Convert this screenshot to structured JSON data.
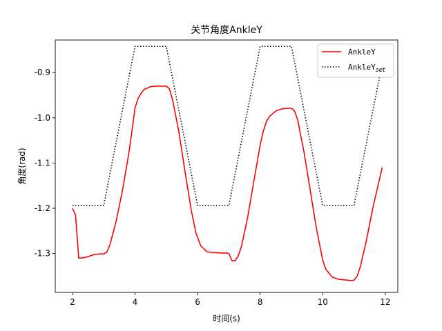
{
  "chart_data": {
    "type": "line",
    "title": "关节角度AnkleY",
    "xlabel": "时间(s)",
    "ylabel": "角度(rad)",
    "xlim": [
      1.45,
      12.4
    ],
    "ylim": [
      -1.386,
      -0.828
    ],
    "xticks": [
      2,
      4,
      6,
      8,
      10,
      12
    ],
    "yticks": [
      -0.9,
      -1.0,
      -1.1,
      -1.2,
      -1.3
    ],
    "xtick_labels": [
      "2",
      "4",
      "6",
      "8",
      "10",
      "12"
    ],
    "ytick_labels": [
      "-0.9",
      "-1.0",
      "-1.1",
      "-1.2",
      "-1.3"
    ],
    "grid": false,
    "legend_position": "upper right",
    "legend_labels": [
      "AnkleY",
      "AnkleY"
    ],
    "legend_subscripts": [
      "",
      "set"
    ],
    "series": [
      {
        "name": "AnkleY",
        "color": "#ff0000",
        "style": "solid",
        "x": [
          2.0,
          2.1,
          2.2,
          2.3,
          2.5,
          2.7,
          2.9,
          3.0,
          3.1,
          3.2,
          3.4,
          3.6,
          3.8,
          3.9,
          4.0,
          4.1,
          4.2,
          4.3,
          4.5,
          4.7,
          4.9,
          5.0,
          5.1,
          5.2,
          5.4,
          5.6,
          5.8,
          5.95,
          6.1,
          6.3,
          6.5,
          6.8,
          6.95,
          7.0,
          7.1,
          7.2,
          7.3,
          7.4,
          7.6,
          7.8,
          8.0,
          8.1,
          8.2,
          8.3,
          8.5,
          8.7,
          8.9,
          9.0,
          9.1,
          9.2,
          9.4,
          9.6,
          9.8,
          10.0,
          10.1,
          10.3,
          10.5,
          10.8,
          10.9,
          11.0,
          11.1,
          11.2,
          11.4,
          11.6,
          11.9
        ],
        "y": [
          -1.2,
          -1.215,
          -1.31,
          -1.31,
          -1.307,
          -1.302,
          -1.301,
          -1.301,
          -1.297,
          -1.28,
          -1.228,
          -1.16,
          -1.08,
          -1.03,
          -0.978,
          -0.957,
          -0.945,
          -0.937,
          -0.931,
          -0.93,
          -0.93,
          -0.93,
          -0.936,
          -0.96,
          -1.03,
          -1.12,
          -1.205,
          -1.255,
          -1.283,
          -1.296,
          -1.298,
          -1.299,
          -1.299,
          -1.3,
          -1.316,
          -1.316,
          -1.305,
          -1.285,
          -1.22,
          -1.14,
          -1.06,
          -1.03,
          -1.008,
          -0.997,
          -0.985,
          -0.98,
          -0.979,
          -0.979,
          -0.985,
          -1.005,
          -1.075,
          -1.16,
          -1.245,
          -1.315,
          -1.335,
          -1.352,
          -1.357,
          -1.359,
          -1.36,
          -1.359,
          -1.35,
          -1.33,
          -1.27,
          -1.2,
          -1.11
        ]
      },
      {
        "name": "AnkleY_set",
        "color": "#000000",
        "style": "dotted",
        "x": [
          2.0,
          3.0,
          4.0,
          5.0,
          6.0,
          7.0,
          8.0,
          9.0,
          10.0,
          11.0,
          11.9
        ],
        "y": [
          -1.194,
          -1.194,
          -0.842,
          -0.842,
          -1.194,
          -1.194,
          -0.842,
          -0.842,
          -1.194,
          -1.194,
          -0.88
        ]
      }
    ]
  }
}
